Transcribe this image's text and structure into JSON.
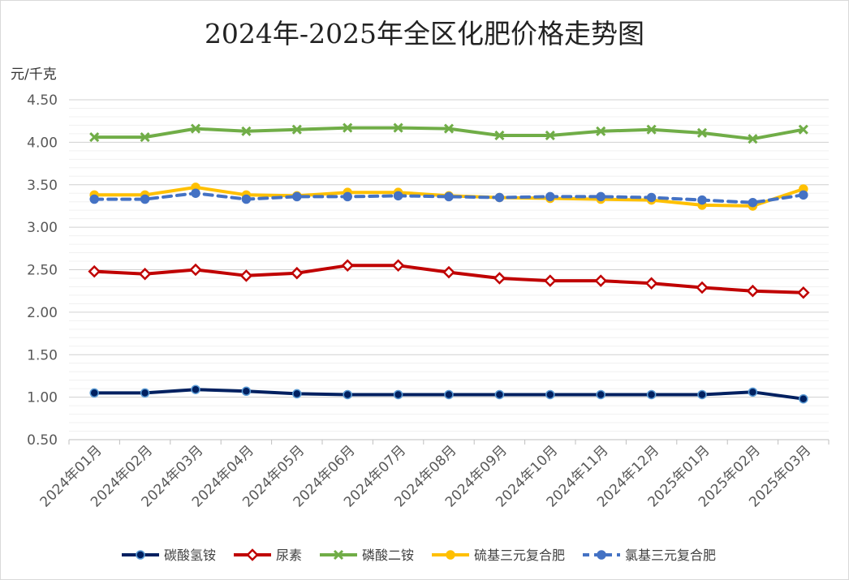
{
  "chart_data": {
    "type": "line",
    "title": "2024年-2025年全区化肥价格走势图",
    "ylabel": "元/千克",
    "xlabel": "",
    "ylim": [
      0.5,
      4.5
    ],
    "ytick_step": 0.5,
    "minor_step": 0.1,
    "ytick_labels": [
      "0.50",
      "1.00",
      "1.50",
      "2.00",
      "2.50",
      "3.00",
      "3.50",
      "4.00",
      "4.50"
    ],
    "categories": [
      "2024年01月",
      "2024年02月",
      "2024年03月",
      "2024年04月",
      "2024年05月",
      "2024年06月",
      "2024年07月",
      "2024年08月",
      "2024年09月",
      "2024年10月",
      "2024年11月",
      "2024年12月",
      "2025年01月",
      "2025年02月",
      "2025年03月"
    ],
    "grid": true,
    "legend_position": "bottom",
    "series": [
      {
        "name": "碳酸氢铵",
        "color": "#002060",
        "marker": "circle",
        "dash": "solid",
        "values": [
          1.05,
          1.05,
          1.09,
          1.07,
          1.04,
          1.03,
          1.03,
          1.03,
          1.03,
          1.03,
          1.03,
          1.03,
          1.03,
          1.06,
          0.98
        ]
      },
      {
        "name": "尿素",
        "color": "#c00000",
        "marker": "diamond",
        "dash": "solid",
        "values": [
          2.48,
          2.45,
          2.5,
          2.43,
          2.46,
          2.55,
          2.55,
          2.47,
          2.4,
          2.37,
          2.37,
          2.34,
          2.29,
          2.25,
          2.23
        ]
      },
      {
        "name": "磷酸二铵",
        "color": "#70ad47",
        "marker": "x",
        "dash": "solid",
        "values": [
          4.06,
          4.06,
          4.16,
          4.13,
          4.15,
          4.17,
          4.17,
          4.16,
          4.08,
          4.08,
          4.13,
          4.15,
          4.11,
          4.04,
          4.15
        ]
      },
      {
        "name": "硫基三元复合肥",
        "color": "#ffc000",
        "marker": "circle",
        "dash": "solid",
        "values": [
          3.38,
          3.38,
          3.47,
          3.38,
          3.37,
          3.41,
          3.41,
          3.37,
          3.35,
          3.34,
          3.33,
          3.32,
          3.26,
          3.25,
          3.45
        ]
      },
      {
        "name": "氯基三元复合肥",
        "color": "#4472c4",
        "marker": "circle",
        "dash": "dashed",
        "values": [
          3.33,
          3.33,
          3.4,
          3.33,
          3.36,
          3.36,
          3.37,
          3.36,
          3.35,
          3.36,
          3.36,
          3.35,
          3.32,
          3.29,
          3.38
        ]
      }
    ]
  }
}
